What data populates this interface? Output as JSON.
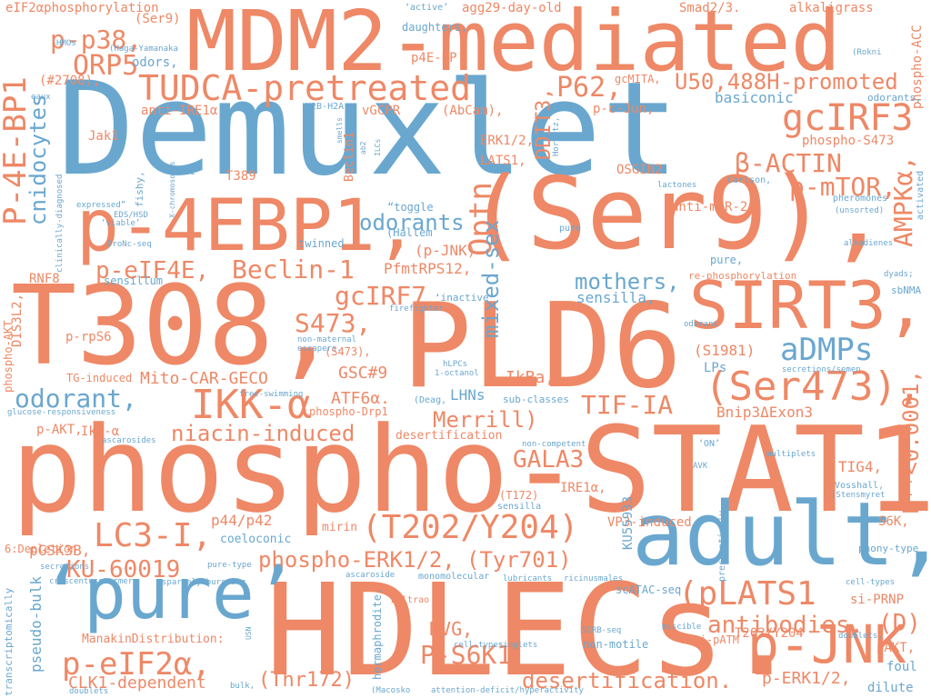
{
  "colors": {
    "orange": "#ee8866",
    "blue": "#6aa7cf",
    "background": "#ffffff"
  },
  "words": [
    {
      "text": "Demuxlet",
      "color": "blue"
    },
    {
      "text": "phospho-STAT1",
      "color": "orange"
    },
    {
      "text": "MDM2-mediated",
      "color": "orange"
    },
    {
      "text": "HDLECs.",
      "color": "orange"
    },
    {
      "text": "T308,",
      "color": "orange"
    },
    {
      "text": "PLD6",
      "color": "orange"
    },
    {
      "text": "(Ser9),",
      "color": "orange"
    },
    {
      "text": "p-4EBP1,",
      "color": "orange"
    },
    {
      "text": "SIRT3,",
      "color": "orange"
    },
    {
      "text": "adult,",
      "color": "blue"
    },
    {
      "text": "‘pure’",
      "color": "blue"
    },
    {
      "text": "p-JNK",
      "color": "orange"
    },
    {
      "text": "(Ser473),",
      "color": "orange"
    },
    {
      "text": "IKK-α",
      "color": "orange"
    },
    {
      "text": "TUDCA-pretreated",
      "color": "orange"
    },
    {
      "text": "U50,488H-promoted",
      "color": "orange"
    },
    {
      "text": "gcIRF3",
      "color": "orange"
    },
    {
      "text": "β-ACTIN",
      "color": "orange"
    },
    {
      "text": "p-mTOR,",
      "color": "orange"
    },
    {
      "text": "p-p38,",
      "color": "orange"
    },
    {
      "text": "ORP5",
      "color": "orange"
    },
    {
      "text": "P62,",
      "color": "orange"
    },
    {
      "text": "p-eIF4E,",
      "color": "orange"
    },
    {
      "text": "Beclin-1",
      "color": "orange"
    },
    {
      "text": "odorants",
      "color": "blue"
    },
    {
      "text": "gcIRF7",
      "color": "orange"
    },
    {
      "text": "S473,",
      "color": "orange"
    },
    {
      "text": "aDMPs",
      "color": "blue"
    },
    {
      "text": "odorant,",
      "color": "blue"
    },
    {
      "text": "mothers,",
      "color": "blue"
    },
    {
      "text": "niacin-induced",
      "color": "orange"
    },
    {
      "text": "Merrill)",
      "color": "orange"
    },
    {
      "text": "TIF-IA",
      "color": "orange"
    },
    {
      "text": "GALA3",
      "color": "orange"
    },
    {
      "text": "(T202/Y204)",
      "color": "orange"
    },
    {
      "text": "LC3-I,",
      "color": "orange"
    },
    {
      "text": "KU-60019",
      "color": "orange"
    },
    {
      "text": "phospho-ERK1/2,",
      "color": "orange"
    },
    {
      "text": "(Tyr701)",
      "color": "orange"
    },
    {
      "text": "(pLATS1",
      "color": "orange"
    },
    {
      "text": "antibodies.",
      "color": "orange"
    },
    {
      "text": "(D)",
      "color": "orange"
    },
    {
      "text": "p-eIF2α,",
      "color": "orange"
    },
    {
      "text": "P-S6K1",
      "color": "orange"
    },
    {
      "text": "desertification.",
      "color": "orange"
    },
    {
      "text": "(Thr172)",
      "color": "orange"
    },
    {
      "text": "CLK1-dependent",
      "color": "orange"
    },
    {
      "text": "p-ERK1/2,",
      "color": "orange"
    },
    {
      "text": "RVG,",
      "color": "orange"
    },
    {
      "text": "Mito-CAR-GECO",
      "color": "orange"
    },
    {
      "text": "GSC#9",
      "color": "orange"
    },
    {
      "text": "ATF6α.",
      "color": "orange"
    },
    {
      "text": "IkBa,",
      "color": "orange"
    },
    {
      "text": "LHNs",
      "color": "blue"
    },
    {
      "text": "Bnip3ΔExon3",
      "color": "orange"
    },
    {
      "text": "(S1981)",
      "color": "orange"
    },
    {
      "text": "LPs",
      "color": "blue"
    },
    {
      "text": "PfmtRPS12,",
      "color": "orange"
    },
    {
      "text": "sensilla,",
      "color": "blue"
    },
    {
      "text": "(p-JNK)",
      "color": "orange"
    },
    {
      "text": "p44/p42",
      "color": "orange"
    },
    {
      "text": "pGSK3B,",
      "color": "orange"
    },
    {
      "text": "IkB-α",
      "color": "orange"
    },
    {
      "text": "p-AKT,",
      "color": "orange"
    },
    {
      "text": "TIG4,",
      "color": "orange"
    },
    {
      "text": "S6K,",
      "color": "orange"
    },
    {
      "text": "si-PRNP",
      "color": "orange"
    },
    {
      "text": "pAKT,",
      "color": "orange"
    },
    {
      "text": "foul",
      "color": "blue"
    },
    {
      "text": "dilute",
      "color": "blue"
    },
    {
      "text": "VP3-induced",
      "color": "orange"
    },
    {
      "text": "mirin",
      "color": "orange"
    },
    {
      "text": "coeloconic",
      "color": "blue"
    },
    {
      "text": "eIF2αphosphorylation",
      "color": "orange"
    },
    {
      "text": "agg29-day-old",
      "color": "orange"
    },
    {
      "text": "Smad2/3.",
      "color": "orange"
    },
    {
      "text": "alkaligrass",
      "color": "orange"
    },
    {
      "text": "(Ser9)",
      "color": "orange"
    },
    {
      "text": "daughters,",
      "color": "blue"
    },
    {
      "text": "p4E-BP",
      "color": "orange"
    },
    {
      "text": "gcMITA,",
      "color": "orange"
    },
    {
      "text": "odors,",
      "color": "blue"
    },
    {
      "text": "(#2708),",
      "color": "orange"
    },
    {
      "text": "anti-IRE1α",
      "color": "orange"
    },
    {
      "text": "vGCPR",
      "color": "orange"
    },
    {
      "text": "(AbCam),",
      "color": "orange"
    },
    {
      "text": "p-c-Jun,",
      "color": "orange"
    },
    {
      "text": "basiconic",
      "color": "blue"
    },
    {
      "text": "phospho-S473",
      "color": "orange"
    },
    {
      "text": "ERK1/2,",
      "color": "orange"
    },
    {
      "text": "LATS1,",
      "color": "orange"
    },
    {
      "text": "OSGIN2",
      "color": "orange"
    },
    {
      "text": "anti-miR-24",
      "color": "orange"
    },
    {
      "text": "Jak1",
      "color": "orange"
    },
    {
      "text": "H2B-H2A",
      "color": "blue"
    },
    {
      "text": "twinned",
      "color": "blue"
    },
    {
      "text": "sensillum",
      "color": "blue"
    },
    {
      "text": "RNF8",
      "color": "orange"
    },
    {
      "text": "TG-induced",
      "color": "orange"
    },
    {
      "text": "desertification",
      "color": "orange"
    },
    {
      "text": "phospho-Drp1",
      "color": "orange"
    },
    {
      "text": "sub-classes",
      "color": "blue"
    },
    {
      "text": "pure-type",
      "color": "blue"
    },
    {
      "text": "ManakinDistribution:",
      "color": "orange"
    },
    {
      "text": "T202/Y204",
      "color": "orange"
    },
    {
      "text": "anti-pATM",
      "color": "orange"
    },
    {
      "text": "scATAC-seq",
      "color": "blue"
    },
    {
      "text": "non-motile",
      "color": "blue"
    },
    {
      "text": "pure,",
      "color": "blue"
    },
    {
      "text": "re-phosphorylation",
      "color": "orange"
    },
    {
      "text": "sbNMA",
      "color": "blue"
    },
    {
      "text": "glucose-responsiveness",
      "color": "blue"
    },
    {
      "text": "6:Depletion",
      "color": "orange"
    },
    {
      "text": "phony-type",
      "color": "blue"
    },
    {
      "text": "Vosshall,",
      "color": "blue"
    },
    {
      "text": "pheromones",
      "color": "blue"
    },
    {
      "text": "monomolecular",
      "color": "blue"
    },
    {
      "text": "Beltrao",
      "color": "orange"
    },
    {
      "text": "(S473),",
      "color": "orange"
    },
    {
      "text": "(T172)",
      "color": "orange"
    },
    {
      "text": "sensilla",
      "color": "blue"
    },
    {
      "text": "IRE1α,",
      "color": "orange"
    },
    {
      "text": "T389",
      "color": "orange"
    },
    {
      "text": "p-rpS6",
      "color": "orange"
    },
    {
      "text": "Carlson,",
      "color": "blue"
    },
    {
      "text": "lactones",
      "color": "blue"
    },
    {
      "text": "P-4E-BP1",
      "color": "orange"
    },
    {
      "text": "cnidocytes",
      "color": "blue"
    },
    {
      "text": "Optn",
      "color": "orange"
    },
    {
      "text": "mixed-sex",
      "color": "blue"
    },
    {
      "text": "DDIT3,",
      "color": "orange"
    },
    {
      "text": "AMPKα,",
      "color": "orange"
    },
    {
      "text": "P**<0.0001,",
      "color": "orange"
    },
    {
      "text": "KU55933",
      "color": "blue"
    },
    {
      "text": "pseudo-bulk",
      "color": "blue"
    },
    {
      "text": "phospho-AKT",
      "color": "orange"
    },
    {
      "text": "DIS3L2,",
      "color": "orange"
    },
    {
      "text": "hermaphrodite.",
      "color": "blue"
    },
    {
      "text": "phospho-ACC",
      "color": "orange"
    },
    {
      "text": "activated",
      "color": "blue"
    },
    {
      "text": "transcriptomically",
      "color": "blue"
    },
    {
      "text": "presumptively",
      "color": "blue"
    },
    {
      "text": "Beclin1",
      "color": "orange"
    },
    {
      "text": "clinically-diagnosed",
      "color": "blue"
    },
    {
      "text": "‘active’",
      "color": "blue"
    },
    {
      "text": "‘inactive’",
      "color": "blue"
    },
    {
      "text": "(Deag,",
      "color": "blue"
    },
    {
      "text": "“toggle",
      "color": "blue"
    },
    {
      "text": "(Hallem",
      "color": "blue"
    },
    {
      "text": "HMOs",
      "color": "blue"
    },
    {
      "text": "(Haga-Yamanaka",
      "color": "blue"
    },
    {
      "text": "odorants,",
      "color": "blue"
    },
    {
      "text": "(Rokni",
      "color": "blue"
    },
    {
      "text": "eaux",
      "color": "blue"
    },
    {
      "text": "NB1",
      "color": "blue"
    },
    {
      "text": "EDS/HSD",
      "color": "blue"
    },
    {
      "text": "‘viable’",
      "color": "blue"
    },
    {
      "text": "expressed”",
      "color": "blue"
    },
    {
      "text": "DroNc-seq",
      "color": "blue"
    },
    {
      "text": "firefighter",
      "color": "blue"
    },
    {
      "text": "non-maternal",
      "color": "blue"
    },
    {
      "text": "escapers.",
      "color": "blue"
    },
    {
      "text": "hLPCs",
      "color": "blue"
    },
    {
      "text": "1-octanol",
      "color": "blue"
    },
    {
      "text": "free-swimming",
      "color": "blue"
    },
    {
      "text": "ascarosides",
      "color": "blue"
    },
    {
      "text": "non-competent",
      "color": "blue"
    },
    {
      "text": "‘ON’",
      "color": "blue"
    },
    {
      "text": "AVK",
      "color": "blue"
    },
    {
      "text": "multiplets",
      "color": "blue"
    },
    {
      "text": "[Stensmyret",
      "color": "blue"
    },
    {
      "text": "alkadienes",
      "color": "blue"
    },
    {
      "text": "dyads;",
      "color": "blue"
    },
    {
      "text": "odorant",
      "color": "blue"
    },
    {
      "text": "(unsorted)",
      "color": "blue"
    },
    {
      "text": "pure",
      "color": "blue"
    },
    {
      "text": "secretions/semen",
      "color": "blue"
    },
    {
      "text": "secretions",
      "color": "blue"
    },
    {
      "text": "crescentusswarmer",
      "color": "blue"
    },
    {
      "text": "sparsely-bursting",
      "color": "blue"
    },
    {
      "text": "ascaroside",
      "color": "blue"
    },
    {
      "text": "lubricants",
      "color": "blue"
    },
    {
      "text": "ricinusmales",
      "color": "blue"
    },
    {
      "text": "SCRB-seq",
      "color": "blue"
    },
    {
      "text": "miscible",
      "color": "blue"
    },
    {
      "text": "cell-types",
      "color": "blue"
    },
    {
      "text": "doublets,",
      "color": "blue"
    },
    {
      "text": "cell-types,",
      "color": "blue"
    },
    {
      "text": "singlets",
      "color": "blue"
    },
    {
      "text": "doublets",
      "color": "blue"
    },
    {
      "text": "bulk,",
      "color": "blue"
    },
    {
      "text": "(Macosko",
      "color": "blue"
    },
    {
      "text": "attention-deficit/hyperactivity",
      "color": "blue"
    },
    {
      "text": "fishy,",
      "color": "blue"
    },
    {
      "text": "X-chromosomes",
      "color": "blue"
    },
    {
      "text": "smells",
      "color": "blue"
    },
    {
      "text": "ab2",
      "color": "blue"
    },
    {
      "text": "ILCs",
      "color": "blue"
    },
    {
      "text": "Horvitz,",
      "color": "blue"
    },
    {
      "text": "USN",
      "color": "blue"
    }
  ]
}
